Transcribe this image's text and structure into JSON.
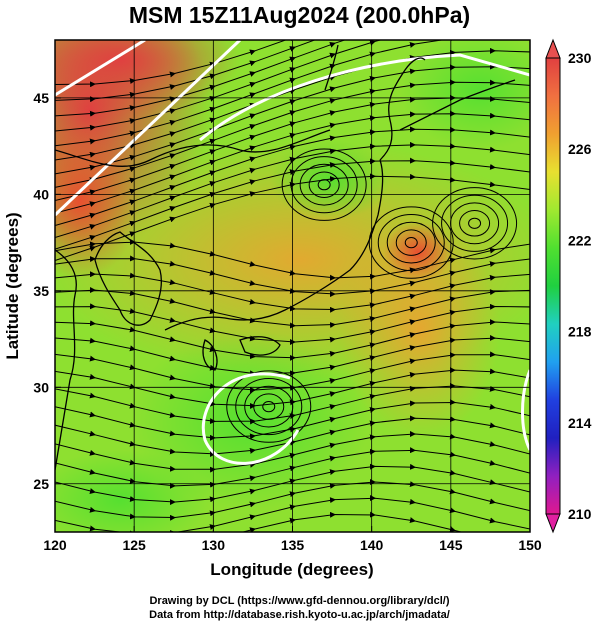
{
  "title": "MSM 15Z11Aug2024 (200.0hPa)",
  "map": {
    "lon_range": [
      120,
      150
    ],
    "lat_range": [
      22.5,
      48
    ],
    "x_ticks": [
      "120",
      "125",
      "130",
      "135",
      "140",
      "145",
      "150"
    ],
    "y_ticks": [
      "25",
      "30",
      "35",
      "40",
      "45"
    ],
    "xlabel": "Longitude (degrees)",
    "ylabel": "Latitude  (degrees)",
    "streamlines": true,
    "coastlines": true,
    "grid": true,
    "contour_color": "#ffffff",
    "features": [
      {
        "name": "cyclonic-vortex",
        "lon": 142.5,
        "lat": 37.5
      },
      {
        "name": "anticyclonic-vortex",
        "lon": 133.5,
        "lat": 29
      },
      {
        "name": "vortex",
        "lon": 137,
        "lat": 40.5
      },
      {
        "name": "vortex",
        "lon": 146.5,
        "lat": 38.5
      }
    ]
  },
  "colorbar": {
    "range": [
      210,
      230
    ],
    "labels": [
      "230",
      "226",
      "222",
      "218",
      "214",
      "210"
    ],
    "colors": [
      "#e01890",
      "#9020c0",
      "#2020c0",
      "#2040e0",
      "#20a0f0",
      "#20d0c0",
      "#20d040",
      "#50e030",
      "#a0e830",
      "#e8e030",
      "#f0a030",
      "#f07040",
      "#e04040"
    ]
  },
  "credits": {
    "line1": "Drawing by DCL (https://www.gfd-dennou.org/library/dcl/)",
    "line2": "Data from http://database.rish.kyoto-u.ac.jp/arch/jmadata/"
  }
}
